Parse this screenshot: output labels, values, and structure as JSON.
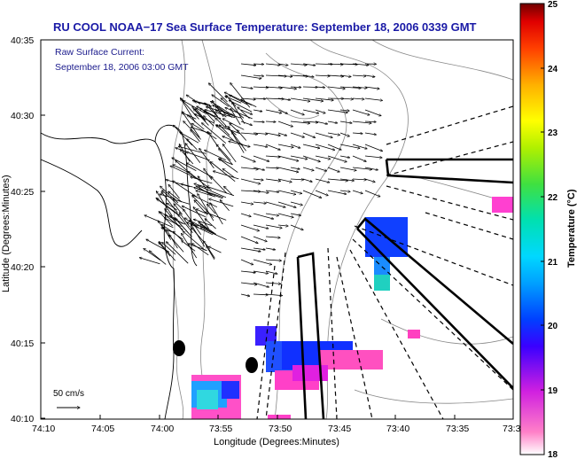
{
  "title": "RU COOL  NOAA−17  Sea Surface Temperature:  September 18, 2006 0339 GMT",
  "subtitle_line1": "Raw Surface Current:",
  "subtitle_line2": "September 18, 2006 03:00 GMT",
  "axes": {
    "xlabel": "Longitude (Degrees:Minutes)",
    "ylabel": "Latitude (Degrees:Minutes)",
    "x_ticks": [
      "74:10",
      "74:05",
      "74:00",
      "73:55",
      "73:50",
      "73:45",
      "73:40",
      "73:35",
      "73:3"
    ],
    "y_ticks": [
      "40:35",
      "40:30",
      "40:25",
      "40:20",
      "40:15",
      "40:10"
    ]
  },
  "colorbar": {
    "label": "Temperature (°C)",
    "ticks": [
      "25",
      "24",
      "23",
      "22",
      "21",
      "20",
      "19",
      "18"
    ],
    "min": 18,
    "max": 25
  },
  "scale_bar": {
    "label": "50 cm/s"
  }
}
